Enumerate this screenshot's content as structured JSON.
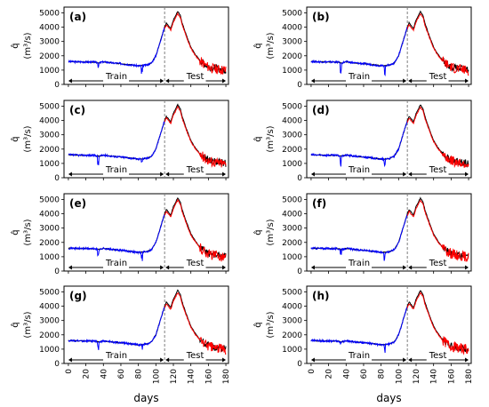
{
  "figure": {
    "x_axis_label": "days",
    "y_axis_label_symbol": "q̂",
    "y_axis_label_unit": "(m³/s)",
    "train_label": "Train",
    "test_label": "Test",
    "colors": {
      "train": "#0000ff",
      "test": "#ff0000",
      "observed": "#000000",
      "split": "#808080"
    }
  },
  "chart_data": {
    "type": "line",
    "panels": [
      "(a)",
      "(b)",
      "(c)",
      "(d)",
      "(e)",
      "(f)",
      "(g)",
      "(h)"
    ],
    "xlabel": "days",
    "ylabel": "q̂ (m³/s)",
    "xlim": [
      -5,
      183
    ],
    "ylim": [
      0,
      5400
    ],
    "x_ticks": [
      0,
      20,
      40,
      60,
      80,
      100,
      120,
      140,
      160,
      180
    ],
    "y_ticks": [
      0,
      1000,
      2000,
      3000,
      4000,
      5000
    ],
    "train_test_split_day": 110,
    "regions": [
      "Train",
      "Test"
    ],
    "series_shape": {
      "x": [
        0,
        10,
        20,
        30,
        35,
        40,
        50,
        60,
        70,
        80,
        85,
        90,
        95,
        100,
        105,
        110,
        112,
        117,
        120,
        125,
        128,
        130,
        135,
        140,
        145,
        150,
        155,
        160,
        165,
        170,
        175,
        180
      ],
      "y": [
        1600,
        1580,
        1570,
        1560,
        1500,
        1580,
        1500,
        1450,
        1380,
        1300,
        1320,
        1360,
        1500,
        2000,
        3000,
        4000,
        4300,
        3900,
        4500,
        5100,
        4800,
        4300,
        3400,
        2600,
        2100,
        1700,
        1450,
        1250,
        1150,
        1100,
        1050,
        1000
      ]
    }
  }
}
